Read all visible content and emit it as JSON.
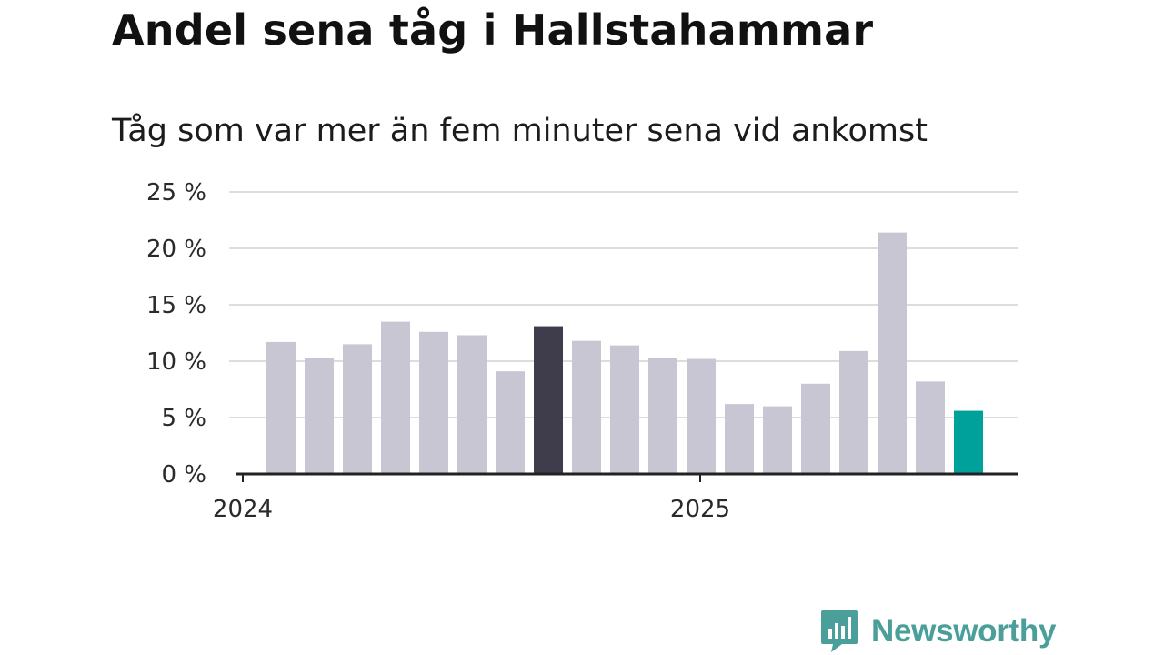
{
  "title": "Andel sena tåg i Hallstahammar",
  "subtitle": "Tåg som var mer än fem minuter sena vid ankomst",
  "brand": {
    "name": "Newsworthy",
    "icon": "newsworthy-logo-icon",
    "color": "#4a9f9b"
  },
  "colors": {
    "bar": "#c8c6d3",
    "highlight_dark": "#3f3d4c",
    "highlight_current": "#00a19a",
    "grid": "#dddddd",
    "axis": "#222222"
  },
  "chart_data": {
    "type": "bar",
    "title": "Andel sena tåg i Hallstahammar",
    "subtitle": "Tåg som var mer än fem minuter sena vid ankomst",
    "xlabel": "",
    "ylabel": "",
    "x_tick_labels": [
      "2024",
      "2025"
    ],
    "y_tick_labels": [
      "0 %",
      "5 %",
      "10 %",
      "15 %",
      "20 %",
      "25 %"
    ],
    "ylim": [
      0,
      25
    ],
    "grid": true,
    "categories": [
      "2024-01",
      "2024-02",
      "2024-03",
      "2024-04",
      "2024-05",
      "2024-06",
      "2024-07",
      "2024-08",
      "2024-09",
      "2024-10",
      "2024-11",
      "2024-12",
      "2025-01",
      "2025-02",
      "2025-03",
      "2025-04",
      "2025-05",
      "2025-06",
      "2025-07"
    ],
    "values": [
      11.7,
      10.3,
      11.5,
      13.5,
      12.6,
      12.3,
      9.1,
      13.1,
      11.8,
      11.4,
      10.3,
      10.2,
      6.2,
      6.0,
      8.0,
      10.9,
      21.4,
      8.2,
      5.6
    ],
    "highlight": {
      "2024-08": "#3f3d4c",
      "2025-07": "#00a19a"
    }
  }
}
